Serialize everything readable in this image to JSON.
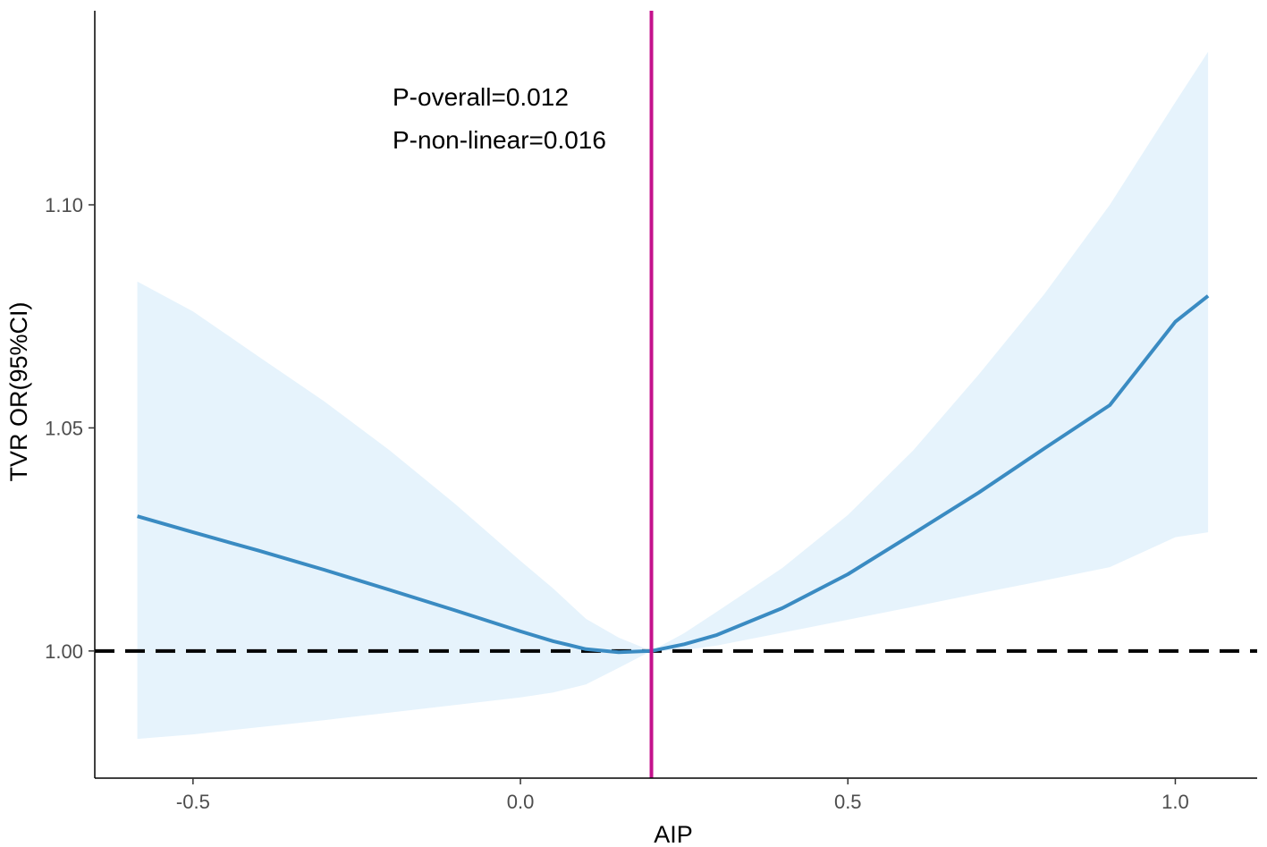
{
  "chart_data": {
    "type": "line",
    "title": "",
    "xlabel": "AIP",
    "ylabel": "TVR OR(95%CI)",
    "xlim": [
      -0.65,
      1.125
    ],
    "ylim": [
      0.9715,
      1.1435
    ],
    "x_ticks": [
      {
        "value": -0.5,
        "label": "-0.5"
      },
      {
        "value": 0.0,
        "label": "0.0"
      },
      {
        "value": 0.5,
        "label": "0.5"
      },
      {
        "value": 1.0,
        "label": "1.0"
      }
    ],
    "y_ticks": [
      {
        "value": 1.0,
        "label": "1.00"
      },
      {
        "value": 1.05,
        "label": "1.05"
      },
      {
        "value": 1.1,
        "label": "1.10"
      }
    ],
    "grid": false,
    "annotations": [
      "P-overall=0.012",
      "P-non-linear=0.016"
    ],
    "reference_hline": 1.0,
    "reference_vline": 0.2,
    "colors": {
      "line": "#3a8bc2",
      "ci_band": "#e6f3fc",
      "vline": "#c4128c",
      "hline": "#000000"
    },
    "series": [
      {
        "x": [
          -0.585,
          -0.5,
          -0.4,
          -0.3,
          -0.2,
          -0.1,
          0.0,
          0.05,
          0.1,
          0.15,
          0.2,
          0.25,
          0.3,
          0.4,
          0.5,
          0.6,
          0.7,
          0.8,
          0.9,
          1.0,
          1.05
        ],
        "y": [
          1.0302,
          1.0266,
          1.0225,
          1.0182,
          1.0137,
          1.0091,
          1.0044,
          1.0022,
          1.0004,
          0.9997,
          1.0,
          1.0015,
          1.0036,
          1.0096,
          1.0172,
          1.0263,
          1.0355,
          1.0454,
          1.0551,
          1.0738,
          1.0796
        ],
        "lower": [
          0.9803,
          0.9813,
          0.9829,
          0.9845,
          0.9862,
          0.9879,
          0.9896,
          0.9907,
          0.9925,
          0.9962,
          1.0,
          1.0002,
          1.0012,
          1.0041,
          1.007,
          1.0099,
          1.0129,
          1.0158,
          1.0188,
          1.0255,
          1.0266
        ],
        "upper": [
          1.0828,
          1.0761,
          1.066,
          1.056,
          1.045,
          1.033,
          1.0202,
          1.014,
          1.0072,
          1.003,
          1.0,
          1.004,
          1.0088,
          1.0186,
          1.0305,
          1.045,
          1.062,
          1.08,
          1.1,
          1.123,
          1.1343
        ]
      }
    ]
  }
}
